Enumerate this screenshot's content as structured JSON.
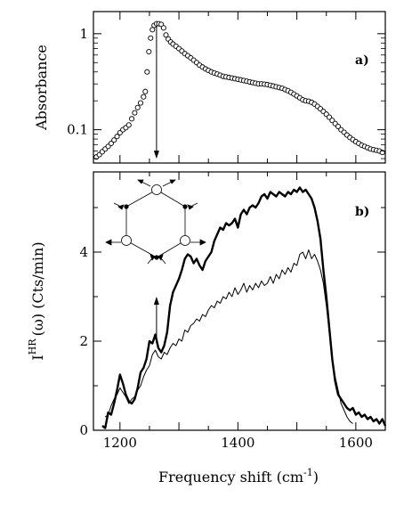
{
  "chart_data": [
    {
      "panel": "a)",
      "type": "scatter",
      "ylabel": "Absorbance",
      "yscale": "log",
      "xlim": [
        1155,
        1650
      ],
      "ylim": [
        0.045,
        1.7
      ],
      "yticks": [
        {
          "value": 0.1,
          "label": "0.1"
        },
        {
          "value": 1,
          "label": "1"
        }
      ],
      "arrow": {
        "x": 1262,
        "from_y": 1.2,
        "to_y": 0.05
      },
      "points": [
        [
          1160,
          0.052
        ],
        [
          1165,
          0.055
        ],
        [
          1170,
          0.059
        ],
        [
          1175,
          0.063
        ],
        [
          1180,
          0.067
        ],
        [
          1185,
          0.072
        ],
        [
          1190,
          0.078
        ],
        [
          1195,
          0.085
        ],
        [
          1200,
          0.093
        ],
        [
          1205,
          0.1
        ],
        [
          1210,
          0.105
        ],
        [
          1215,
          0.112
        ],
        [
          1220,
          0.13
        ],
        [
          1225,
          0.15
        ],
        [
          1230,
          0.17
        ],
        [
          1235,
          0.19
        ],
        [
          1240,
          0.22
        ],
        [
          1243,
          0.25
        ],
        [
          1246,
          0.4
        ],
        [
          1249,
          0.65
        ],
        [
          1252,
          0.9
        ],
        [
          1255,
          1.1
        ],
        [
          1258,
          1.22
        ],
        [
          1262,
          1.27
        ],
        [
          1266,
          1.27
        ],
        [
          1270,
          1.25
        ],
        [
          1274,
          1.15
        ],
        [
          1278,
          0.97
        ],
        [
          1282,
          0.88
        ],
        [
          1286,
          0.82
        ],
        [
          1290,
          0.78
        ],
        [
          1295,
          0.74
        ],
        [
          1300,
          0.7
        ],
        [
          1305,
          0.66
        ],
        [
          1310,
          0.62
        ],
        [
          1315,
          0.59
        ],
        [
          1320,
          0.56
        ],
        [
          1325,
          0.53
        ],
        [
          1330,
          0.5
        ],
        [
          1335,
          0.47
        ],
        [
          1340,
          0.45
        ],
        [
          1345,
          0.43
        ],
        [
          1350,
          0.415
        ],
        [
          1355,
          0.4
        ],
        [
          1360,
          0.39
        ],
        [
          1365,
          0.38
        ],
        [
          1370,
          0.37
        ],
        [
          1375,
          0.36
        ],
        [
          1380,
          0.355
        ],
        [
          1385,
          0.35
        ],
        [
          1390,
          0.345
        ],
        [
          1395,
          0.34
        ],
        [
          1400,
          0.335
        ],
        [
          1405,
          0.33
        ],
        [
          1410,
          0.325
        ],
        [
          1415,
          0.32
        ],
        [
          1420,
          0.315
        ],
        [
          1425,
          0.31
        ],
        [
          1430,
          0.305
        ],
        [
          1435,
          0.3
        ],
        [
          1440,
          0.3
        ],
        [
          1445,
          0.298
        ],
        [
          1450,
          0.295
        ],
        [
          1455,
          0.29
        ],
        [
          1460,
          0.285
        ],
        [
          1465,
          0.28
        ],
        [
          1470,
          0.275
        ],
        [
          1475,
          0.27
        ],
        [
          1480,
          0.262
        ],
        [
          1485,
          0.255
        ],
        [
          1490,
          0.245
        ],
        [
          1495,
          0.235
        ],
        [
          1500,
          0.225
        ],
        [
          1505,
          0.215
        ],
        [
          1510,
          0.205
        ],
        [
          1515,
          0.2
        ],
        [
          1520,
          0.198
        ],
        [
          1525,
          0.193
        ],
        [
          1530,
          0.185
        ],
        [
          1535,
          0.175
        ],
        [
          1540,
          0.165
        ],
        [
          1545,
          0.155
        ],
        [
          1550,
          0.145
        ],
        [
          1555,
          0.135
        ],
        [
          1560,
          0.125
        ],
        [
          1565,
          0.116
        ],
        [
          1570,
          0.108
        ],
        [
          1575,
          0.1
        ],
        [
          1580,
          0.094
        ],
        [
          1585,
          0.088
        ],
        [
          1590,
          0.083
        ],
        [
          1595,
          0.079
        ],
        [
          1600,
          0.075
        ],
        [
          1605,
          0.072
        ],
        [
          1610,
          0.069
        ],
        [
          1615,
          0.067
        ],
        [
          1620,
          0.065
        ],
        [
          1625,
          0.063
        ],
        [
          1630,
          0.062
        ],
        [
          1635,
          0.061
        ],
        [
          1640,
          0.06
        ],
        [
          1645,
          0.058
        ]
      ]
    },
    {
      "panel": "b)",
      "type": "line",
      "ylabel": "I",
      "ylabel_sup": "HR",
      "ylabel_rest": "(ω) (Cts/min)",
      "xlabel": "Frequency shift (cm",
      "xlabel_sup": "-1",
      "xlabel_end": ")",
      "xlim": [
        1155,
        1650
      ],
      "ylim": [
        0,
        5.8
      ],
      "xticks": [
        {
          "value": 1200,
          "label": "1200"
        },
        {
          "value": 1400,
          "label": "1400"
        },
        {
          "value": 1600,
          "label": "1600"
        }
      ],
      "yticks": [
        {
          "value": 0,
          "label": "0"
        },
        {
          "value": 2,
          "label": "2"
        },
        {
          "value": 4,
          "label": "4"
        }
      ],
      "arrow": {
        "x": 1262,
        "from_y": 1.95,
        "to_y": 3.0
      },
      "series": [
        {
          "style": "thick",
          "points": [
            [
              1170,
              0.1
            ],
            [
              1175,
              0.05
            ],
            [
              1180,
              0.4
            ],
            [
              1185,
              0.35
            ],
            [
              1190,
              0.6
            ],
            [
              1195,
              0.9
            ],
            [
              1200,
              1.25
            ],
            [
              1205,
              1.05
            ],
            [
              1210,
              0.8
            ],
            [
              1215,
              0.65
            ],
            [
              1220,
              0.6
            ],
            [
              1225,
              0.7
            ],
            [
              1230,
              0.95
            ],
            [
              1235,
              1.3
            ],
            [
              1240,
              1.4
            ],
            [
              1245,
              1.6
            ],
            [
              1250,
              2.0
            ],
            [
              1255,
              1.95
            ],
            [
              1260,
              2.15
            ],
            [
              1265,
              1.85
            ],
            [
              1270,
              1.75
            ],
            [
              1275,
              1.9
            ],
            [
              1280,
              2.2
            ],
            [
              1285,
              2.8
            ],
            [
              1290,
              3.1
            ],
            [
              1295,
              3.25
            ],
            [
              1300,
              3.4
            ],
            [
              1305,
              3.6
            ],
            [
              1310,
              3.85
            ],
            [
              1315,
              3.95
            ],
            [
              1320,
              3.9
            ],
            [
              1325,
              3.75
            ],
            [
              1330,
              3.85
            ],
            [
              1335,
              3.7
            ],
            [
              1340,
              3.6
            ],
            [
              1345,
              3.8
            ],
            [
              1350,
              3.9
            ],
            [
              1355,
              4.0
            ],
            [
              1360,
              4.25
            ],
            [
              1365,
              4.4
            ],
            [
              1370,
              4.55
            ],
            [
              1375,
              4.5
            ],
            [
              1380,
              4.65
            ],
            [
              1385,
              4.6
            ],
            [
              1390,
              4.65
            ],
            [
              1395,
              4.75
            ],
            [
              1400,
              4.55
            ],
            [
              1405,
              4.85
            ],
            [
              1410,
              4.95
            ],
            [
              1415,
              4.85
            ],
            [
              1420,
              5.0
            ],
            [
              1425,
              5.05
            ],
            [
              1430,
              5.0
            ],
            [
              1435,
              5.1
            ],
            [
              1440,
              5.25
            ],
            [
              1445,
              5.3
            ],
            [
              1450,
              5.2
            ],
            [
              1455,
              5.35
            ],
            [
              1460,
              5.3
            ],
            [
              1465,
              5.25
            ],
            [
              1470,
              5.35
            ],
            [
              1475,
              5.3
            ],
            [
              1480,
              5.25
            ],
            [
              1485,
              5.35
            ],
            [
              1490,
              5.3
            ],
            [
              1495,
              5.4
            ],
            [
              1500,
              5.35
            ],
            [
              1505,
              5.45
            ],
            [
              1510,
              5.35
            ],
            [
              1515,
              5.4
            ],
            [
              1520,
              5.3
            ],
            [
              1525,
              5.2
            ],
            [
              1530,
              5.0
            ],
            [
              1535,
              4.7
            ],
            [
              1540,
              4.3
            ],
            [
              1545,
              3.6
            ],
            [
              1550,
              3.0
            ],
            [
              1555,
              2.3
            ],
            [
              1560,
              1.6
            ],
            [
              1565,
              1.1
            ],
            [
              1570,
              0.8
            ],
            [
              1575,
              0.7
            ],
            [
              1580,
              0.6
            ],
            [
              1585,
              0.5
            ],
            [
              1590,
              0.45
            ],
            [
              1595,
              0.5
            ],
            [
              1600,
              0.35
            ],
            [
              1605,
              0.4
            ],
            [
              1610,
              0.3
            ],
            [
              1615,
              0.35
            ],
            [
              1620,
              0.25
            ],
            [
              1625,
              0.3
            ],
            [
              1630,
              0.2
            ],
            [
              1635,
              0.25
            ],
            [
              1640,
              0.15
            ],
            [
              1645,
              0.25
            ],
            [
              1650,
              0.1
            ]
          ]
        },
        {
          "style": "thin",
          "points": [
            [
              1175,
              0.3
            ],
            [
              1180,
              0.35
            ],
            [
              1185,
              0.55
            ],
            [
              1190,
              0.7
            ],
            [
              1195,
              0.8
            ],
            [
              1200,
              0.95
            ],
            [
              1205,
              0.85
            ],
            [
              1210,
              0.75
            ],
            [
              1215,
              0.6
            ],
            [
              1220,
              0.7
            ],
            [
              1225,
              0.75
            ],
            [
              1230,
              0.9
            ],
            [
              1235,
              1.0
            ],
            [
              1240,
              1.2
            ],
            [
              1245,
              1.35
            ],
            [
              1250,
              1.45
            ],
            [
              1255,
              1.7
            ],
            [
              1260,
              1.8
            ],
            [
              1265,
              1.65
            ],
            [
              1270,
              1.6
            ],
            [
              1275,
              1.75
            ],
            [
              1280,
              1.7
            ],
            [
              1285,
              1.85
            ],
            [
              1290,
              1.95
            ],
            [
              1295,
              1.9
            ],
            [
              1300,
              2.05
            ],
            [
              1305,
              2.0
            ],
            [
              1310,
              2.25
            ],
            [
              1315,
              2.2
            ],
            [
              1320,
              2.35
            ],
            [
              1325,
              2.4
            ],
            [
              1330,
              2.5
            ],
            [
              1335,
              2.45
            ],
            [
              1340,
              2.6
            ],
            [
              1345,
              2.55
            ],
            [
              1350,
              2.7
            ],
            [
              1355,
              2.8
            ],
            [
              1360,
              2.75
            ],
            [
              1365,
              2.9
            ],
            [
              1370,
              2.85
            ],
            [
              1375,
              3.0
            ],
            [
              1380,
              2.95
            ],
            [
              1385,
              3.1
            ],
            [
              1390,
              3.0
            ],
            [
              1395,
              3.2
            ],
            [
              1400,
              3.05
            ],
            [
              1405,
              3.15
            ],
            [
              1410,
              3.3
            ],
            [
              1415,
              3.1
            ],
            [
              1420,
              3.25
            ],
            [
              1425,
              3.15
            ],
            [
              1430,
              3.3
            ],
            [
              1435,
              3.2
            ],
            [
              1440,
              3.35
            ],
            [
              1445,
              3.25
            ],
            [
              1450,
              3.3
            ],
            [
              1455,
              3.45
            ],
            [
              1460,
              3.3
            ],
            [
              1465,
              3.5
            ],
            [
              1470,
              3.4
            ],
            [
              1475,
              3.6
            ],
            [
              1480,
              3.5
            ],
            [
              1485,
              3.65
            ],
            [
              1490,
              3.55
            ],
            [
              1495,
              3.75
            ],
            [
              1500,
              3.7
            ],
            [
              1505,
              3.95
            ],
            [
              1510,
              4.0
            ],
            [
              1515,
              3.85
            ],
            [
              1520,
              4.05
            ],
            [
              1525,
              3.85
            ],
            [
              1530,
              3.95
            ],
            [
              1535,
              3.8
            ],
            [
              1540,
              3.6
            ],
            [
              1545,
              3.3
            ],
            [
              1550,
              2.8
            ],
            [
              1555,
              2.2
            ],
            [
              1560,
              1.6
            ],
            [
              1565,
              1.2
            ],
            [
              1570,
              0.9
            ],
            [
              1575,
              0.6
            ],
            [
              1580,
              0.45
            ],
            [
              1585,
              0.3
            ],
            [
              1590,
              0.2
            ],
            [
              1595,
              0.15
            ]
          ]
        }
      ]
    }
  ]
}
